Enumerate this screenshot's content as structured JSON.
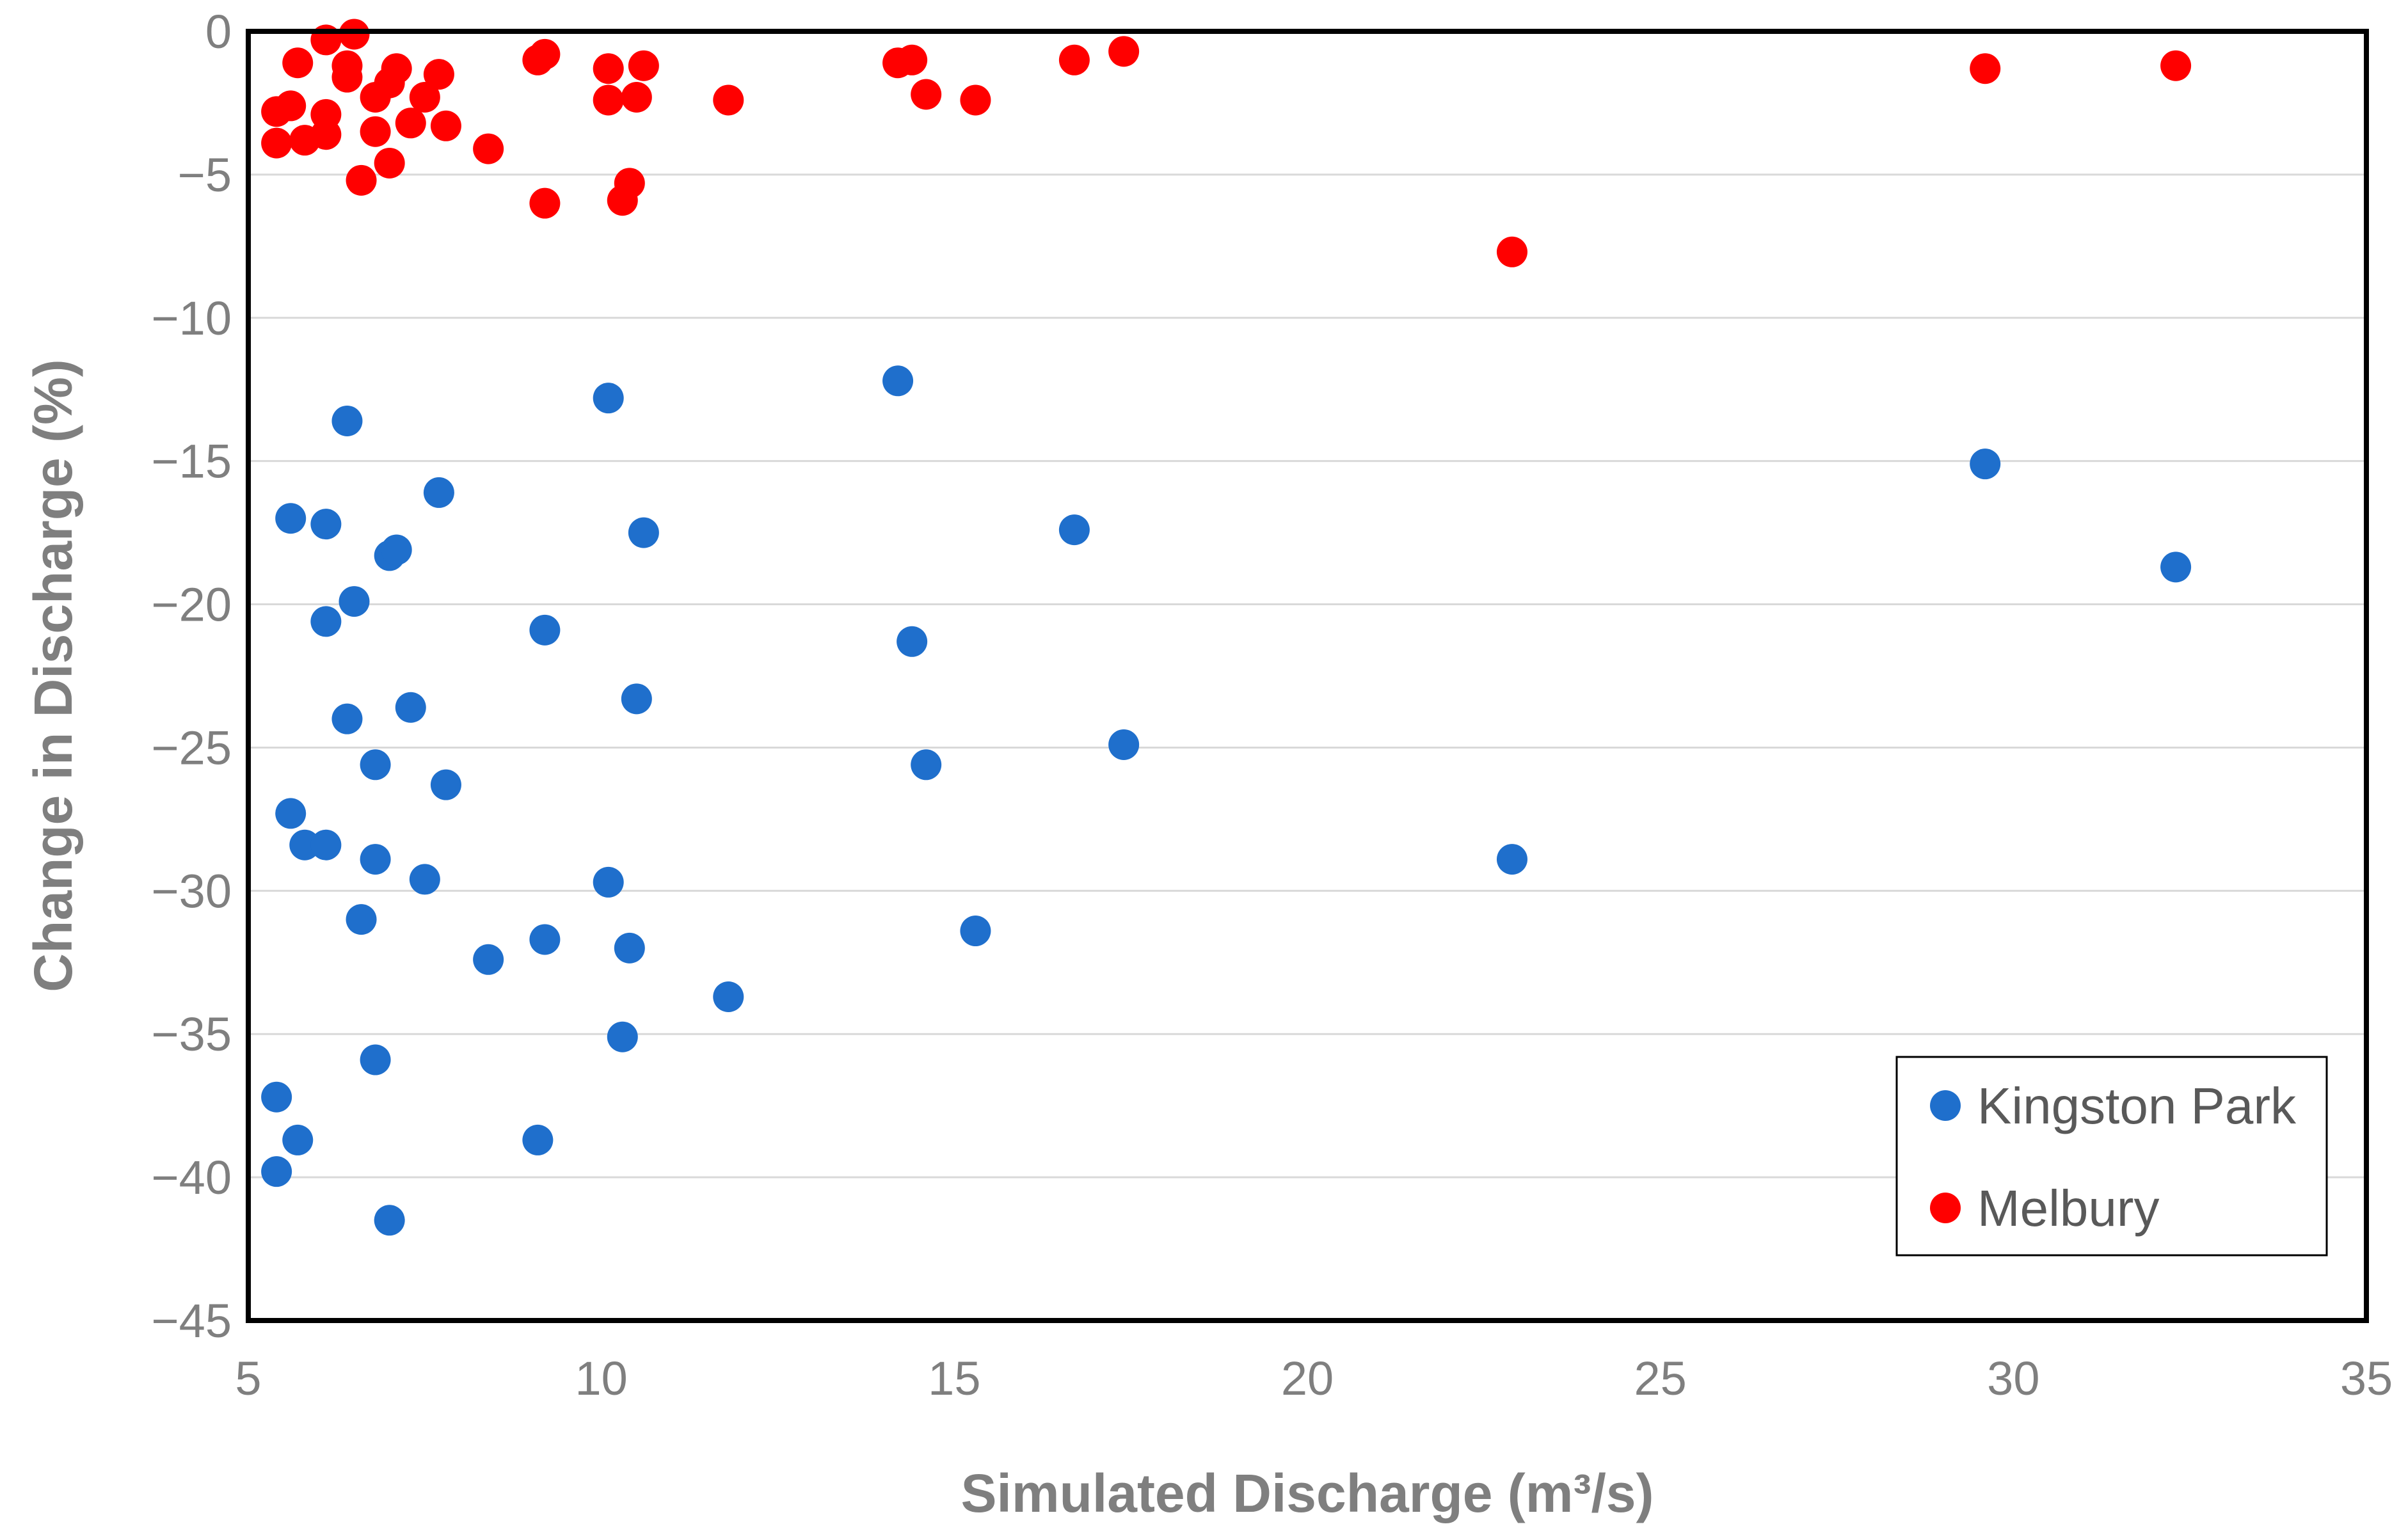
{
  "chart_data": {
    "type": "scatter",
    "title": "",
    "xlabel": "Simulated Discharge (m³/s)",
    "ylabel": "Change in Discharge (%)",
    "xlim": [
      5,
      35
    ],
    "ylim": [
      -45,
      0
    ],
    "xticks": [
      5,
      10,
      15,
      20,
      25,
      30,
      35
    ],
    "yticks": [
      0,
      -5,
      -10,
      -15,
      -20,
      -25,
      -30,
      -35,
      -40,
      -45
    ],
    "xtick_labels": [
      "5",
      "10",
      "15",
      "20",
      "25",
      "30",
      "35"
    ],
    "ytick_labels": [
      "0",
      "−5",
      "−10",
      "−15",
      "−20",
      "−25",
      "−30",
      "−35",
      "−40",
      "−45"
    ],
    "grid": "horizontal",
    "legend_position": "bottom-right",
    "series": [
      {
        "name": "Kingston Park",
        "color": "#1f6fcc",
        "points": [
          [
            5.4,
            -37.2
          ],
          [
            5.4,
            -39.8
          ],
          [
            5.6,
            -17.0
          ],
          [
            5.6,
            -27.3
          ],
          [
            5.7,
            -38.7
          ],
          [
            5.8,
            -28.4
          ],
          [
            6.1,
            -17.2
          ],
          [
            6.1,
            -20.6
          ],
          [
            6.1,
            -28.4
          ],
          [
            6.4,
            -13.6
          ],
          [
            6.4,
            -24.0
          ],
          [
            6.5,
            -19.9
          ],
          [
            6.6,
            -31.0
          ],
          [
            6.8,
            -25.6
          ],
          [
            6.8,
            -28.9
          ],
          [
            6.8,
            -35.9
          ],
          [
            7.0,
            -18.3
          ],
          [
            7.0,
            -41.5
          ],
          [
            7.1,
            -18.1
          ],
          [
            7.3,
            -23.6
          ],
          [
            7.5,
            -29.6
          ],
          [
            7.7,
            -16.1
          ],
          [
            7.8,
            -26.3
          ],
          [
            8.4,
            -32.4
          ],
          [
            9.1,
            -38.7
          ],
          [
            9.2,
            -20.9
          ],
          [
            9.2,
            -31.7
          ],
          [
            10.1,
            -12.8
          ],
          [
            10.1,
            -29.7
          ],
          [
            10.3,
            -35.1
          ],
          [
            10.4,
            -32.0
          ],
          [
            10.5,
            -23.3
          ],
          [
            10.6,
            -17.5
          ],
          [
            11.8,
            -33.7
          ],
          [
            14.2,
            -12.2
          ],
          [
            14.4,
            -21.3
          ],
          [
            14.6,
            -25.6
          ],
          [
            15.3,
            -31.4
          ],
          [
            16.7,
            -17.4
          ],
          [
            17.4,
            -24.9
          ],
          [
            22.9,
            -28.9
          ],
          [
            29.6,
            -15.1
          ],
          [
            32.3,
            -18.7
          ]
        ]
      },
      {
        "name": "Melbury",
        "color": "#ff0000",
        "points": [
          [
            5.4,
            -2.8
          ],
          [
            5.4,
            -3.9
          ],
          [
            5.6,
            -2.6
          ],
          [
            5.7,
            -1.1
          ],
          [
            5.8,
            -3.8
          ],
          [
            6.1,
            -0.3
          ],
          [
            6.1,
            -2.9
          ],
          [
            6.1,
            -3.6
          ],
          [
            6.4,
            -1.2
          ],
          [
            6.4,
            -1.6
          ],
          [
            6.5,
            -0.1
          ],
          [
            6.6,
            -5.2
          ],
          [
            6.8,
            -2.3
          ],
          [
            6.8,
            -3.5
          ],
          [
            7.0,
            -1.8
          ],
          [
            7.0,
            -4.6
          ],
          [
            7.1,
            -1.3
          ],
          [
            7.3,
            -3.2
          ],
          [
            7.5,
            -2.3
          ],
          [
            7.7,
            -1.5
          ],
          [
            7.8,
            -3.3
          ],
          [
            8.4,
            -4.1
          ],
          [
            9.1,
            -1.0
          ],
          [
            9.2,
            -0.8
          ],
          [
            9.2,
            -6.0
          ],
          [
            10.1,
            -1.3
          ],
          [
            10.1,
            -2.4
          ],
          [
            10.3,
            -5.9
          ],
          [
            10.4,
            -5.3
          ],
          [
            10.5,
            -2.3
          ],
          [
            10.6,
            -1.2
          ],
          [
            11.8,
            -2.4
          ],
          [
            14.2,
            -1.1
          ],
          [
            14.4,
            -1.0
          ],
          [
            14.6,
            -2.2
          ],
          [
            15.3,
            -2.4
          ],
          [
            16.7,
            -1.0
          ],
          [
            17.4,
            -0.7
          ],
          [
            22.9,
            -7.7
          ],
          [
            29.6,
            -1.3
          ],
          [
            32.3,
            -1.2
          ]
        ]
      }
    ]
  }
}
